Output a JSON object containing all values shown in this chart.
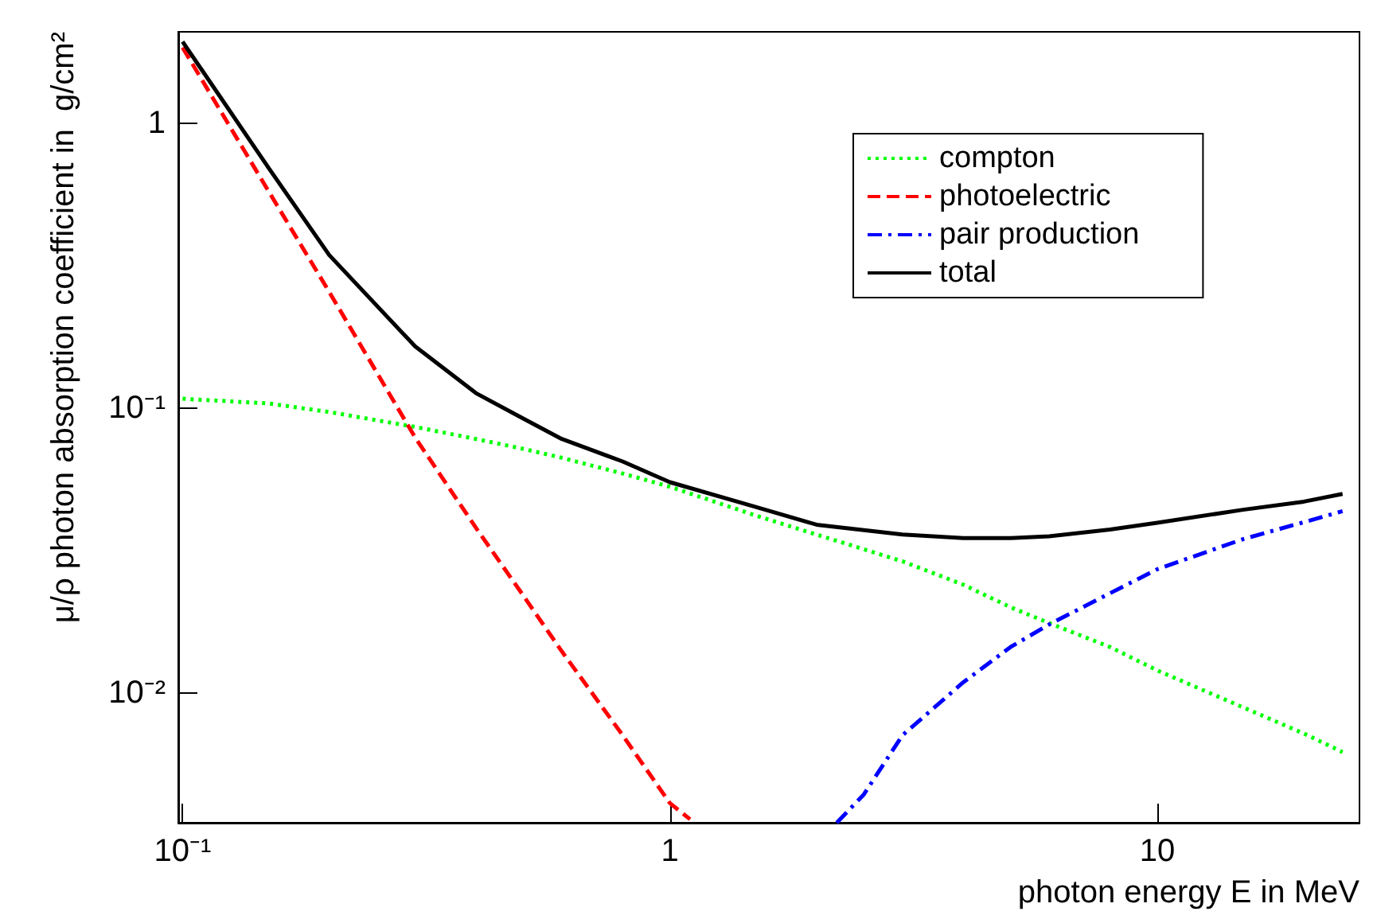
{
  "chart_data": {
    "type": "line",
    "xlabel": "photon energy E in MeV",
    "ylabel": "μ/ρ photon absorption coefficient in  g/cm²",
    "log": "xy",
    "grid": false,
    "legend": "top right",
    "marker": "none",
    "xlim": [
      0.098,
      26
    ],
    "xticks": [
      {
        "value": 0.1,
        "label": "10⁻¹"
      },
      1,
      10
    ],
    "ylim": [
      0.0035,
      2.1
    ],
    "yticks": [
      {
        "value": 0.01,
        "label": "10⁻²"
      },
      {
        "value": 0.1,
        "label": "10⁻¹"
      },
      1
    ],
    "series": [
      {
        "name": "compton",
        "color": "#00ff00",
        "line_style": "dotted",
        "x": [
          0.1,
          0.15,
          0.2,
          0.3,
          0.4,
          0.5,
          0.6,
          0.8,
          1,
          1.5,
          2,
          3,
          4,
          5,
          6,
          8,
          10,
          15,
          20,
          24
        ],
        "values": [
          0.108,
          0.104,
          0.097,
          0.086,
          0.078,
          0.072,
          0.067,
          0.059,
          0.053,
          0.042,
          0.036,
          0.029,
          0.024,
          0.02,
          0.0176,
          0.0145,
          0.012,
          0.0089,
          0.0072,
          0.0062
        ]
      },
      {
        "name": "photoelectric",
        "color": "#ff0000",
        "line_style": "dashed",
        "x": [
          0.1,
          0.15,
          0.2,
          0.3,
          0.4,
          0.5,
          0.6,
          0.8,
          1,
          1.1
        ],
        "values": [
          1.85,
          0.58,
          0.256,
          0.079,
          0.038,
          0.022,
          0.014,
          0.0071,
          0.0041,
          0.0036
        ]
      },
      {
        "name": "pair production",
        "color": "#0000ff",
        "line_style": "dashdot",
        "x": [
          2.2,
          2.5,
          3,
          4,
          5,
          6,
          8,
          10,
          15,
          20,
          24
        ],
        "values": [
          0.0035,
          0.0044,
          0.0071,
          0.0109,
          0.0145,
          0.0174,
          0.0224,
          0.0272,
          0.0347,
          0.0398,
          0.0435
        ]
      },
      {
        "name": "total",
        "color": "#000000",
        "line_style": "solid",
        "x": [
          0.1,
          0.15,
          0.2,
          0.3,
          0.4,
          0.5,
          0.6,
          0.8,
          1,
          1.5,
          2,
          3,
          4,
          5,
          6,
          8,
          10,
          15,
          20,
          24
        ],
        "values": [
          1.94,
          0.7,
          0.345,
          0.165,
          0.113,
          0.092,
          0.078,
          0.065,
          0.055,
          0.045,
          0.039,
          0.036,
          0.035,
          0.035,
          0.0355,
          0.0375,
          0.0396,
          0.044,
          0.047,
          0.05
        ]
      }
    ]
  }
}
